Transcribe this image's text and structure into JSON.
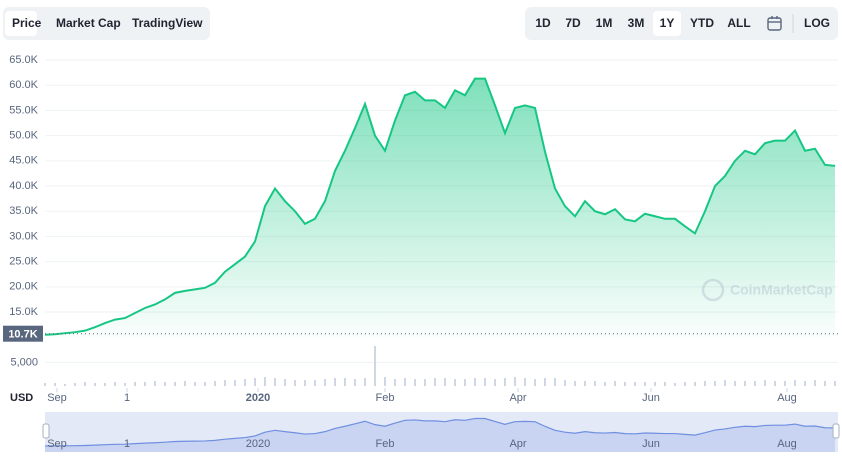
{
  "toolbar": {
    "tabs": [
      "Price",
      "Market Cap",
      "TradingView"
    ],
    "active_tab": 0,
    "ranges": [
      "1D",
      "7D",
      "1M",
      "3M",
      "1Y",
      "YTD",
      "ALL"
    ],
    "active_range": 4,
    "log": "LOG"
  },
  "chart_data": {
    "type": "area",
    "currency": "USD",
    "watermark": "CoinMarketCap",
    "series": [
      {
        "name": "Price",
        "color": "#16c784",
        "values": [
          10500,
          10600,
          10800,
          11000,
          11300,
          12000,
          12800,
          13500,
          13800,
          14800,
          15800,
          16500,
          17500,
          18800,
          19200,
          19500,
          19800,
          20800,
          23000,
          24500,
          26000,
          29000,
          36000,
          39500,
          37000,
          35000,
          32500,
          33500,
          37000,
          43000,
          47000,
          51500,
          56300,
          50000,
          47000,
          53000,
          58000,
          58700,
          57000,
          57000,
          55500,
          59000,
          58000,
          61300,
          61300,
          56000,
          50500,
          55500,
          56000,
          55500,
          46800,
          39500,
          36000,
          34000,
          37000,
          35000,
          34400,
          35400,
          33400,
          33000,
          34500,
          34000,
          33500,
          33500,
          32000,
          30600,
          35000,
          40000,
          42000,
          45000,
          47000,
          46300,
          48500,
          49000,
          49000,
          51000,
          47000,
          47400,
          44200,
          44000
        ]
      }
    ],
    "volume": [
      3,
      3,
      2,
      3,
      4,
      3,
      3,
      4,
      3,
      4,
      4,
      5,
      4,
      4,
      5,
      4,
      4,
      5,
      6,
      6,
      7,
      8,
      9,
      8,
      7,
      6,
      6,
      6,
      7,
      8,
      8,
      7,
      8,
      40,
      9,
      7,
      8,
      7,
      7,
      8,
      8,
      7,
      7,
      8,
      8,
      7,
      8,
      9,
      8,
      7,
      8,
      8,
      6,
      5,
      5,
      5,
      4,
      5,
      4,
      4,
      4,
      4,
      4,
      3,
      4,
      4,
      5,
      5,
      6,
      5,
      5,
      5,
      6,
      5,
      5,
      6,
      5,
      6,
      5,
      5
    ],
    "current": {
      "value": 10700,
      "label": "10.7K"
    },
    "xlim": [
      0,
      79.3
    ],
    "xticks": [
      {
        "value": 1.2,
        "label": "Sep"
      },
      {
        "value": 8.2,
        "label": "1"
      },
      {
        "value": 21.3,
        "label": "2020"
      },
      {
        "value": 34,
        "label": "Feb"
      },
      {
        "value": 47.3,
        "label": "Apr"
      },
      {
        "value": 60.6,
        "label": "Jun"
      },
      {
        "value": 74.2,
        "label": "Aug"
      }
    ],
    "ylim": [
      3000,
      66000
    ],
    "yticks": [
      {
        "value": 5000,
        "label": "5,000"
      },
      {
        "value": 15000,
        "label": "15.0K"
      },
      {
        "value": 20000,
        "label": "20.0K"
      },
      {
        "value": 25000,
        "label": "25.0K"
      },
      {
        "value": 30000,
        "label": "30.0K"
      },
      {
        "value": 35000,
        "label": "35.0K"
      },
      {
        "value": 40000,
        "label": "40.0K"
      },
      {
        "value": 45000,
        "label": "45.0K"
      },
      {
        "value": 50000,
        "label": "50.0K"
      },
      {
        "value": 55000,
        "label": "55.0K"
      },
      {
        "value": 60000,
        "label": "60.0K"
      },
      {
        "value": 65000,
        "label": "65.0K"
      }
    ],
    "grid": true
  }
}
